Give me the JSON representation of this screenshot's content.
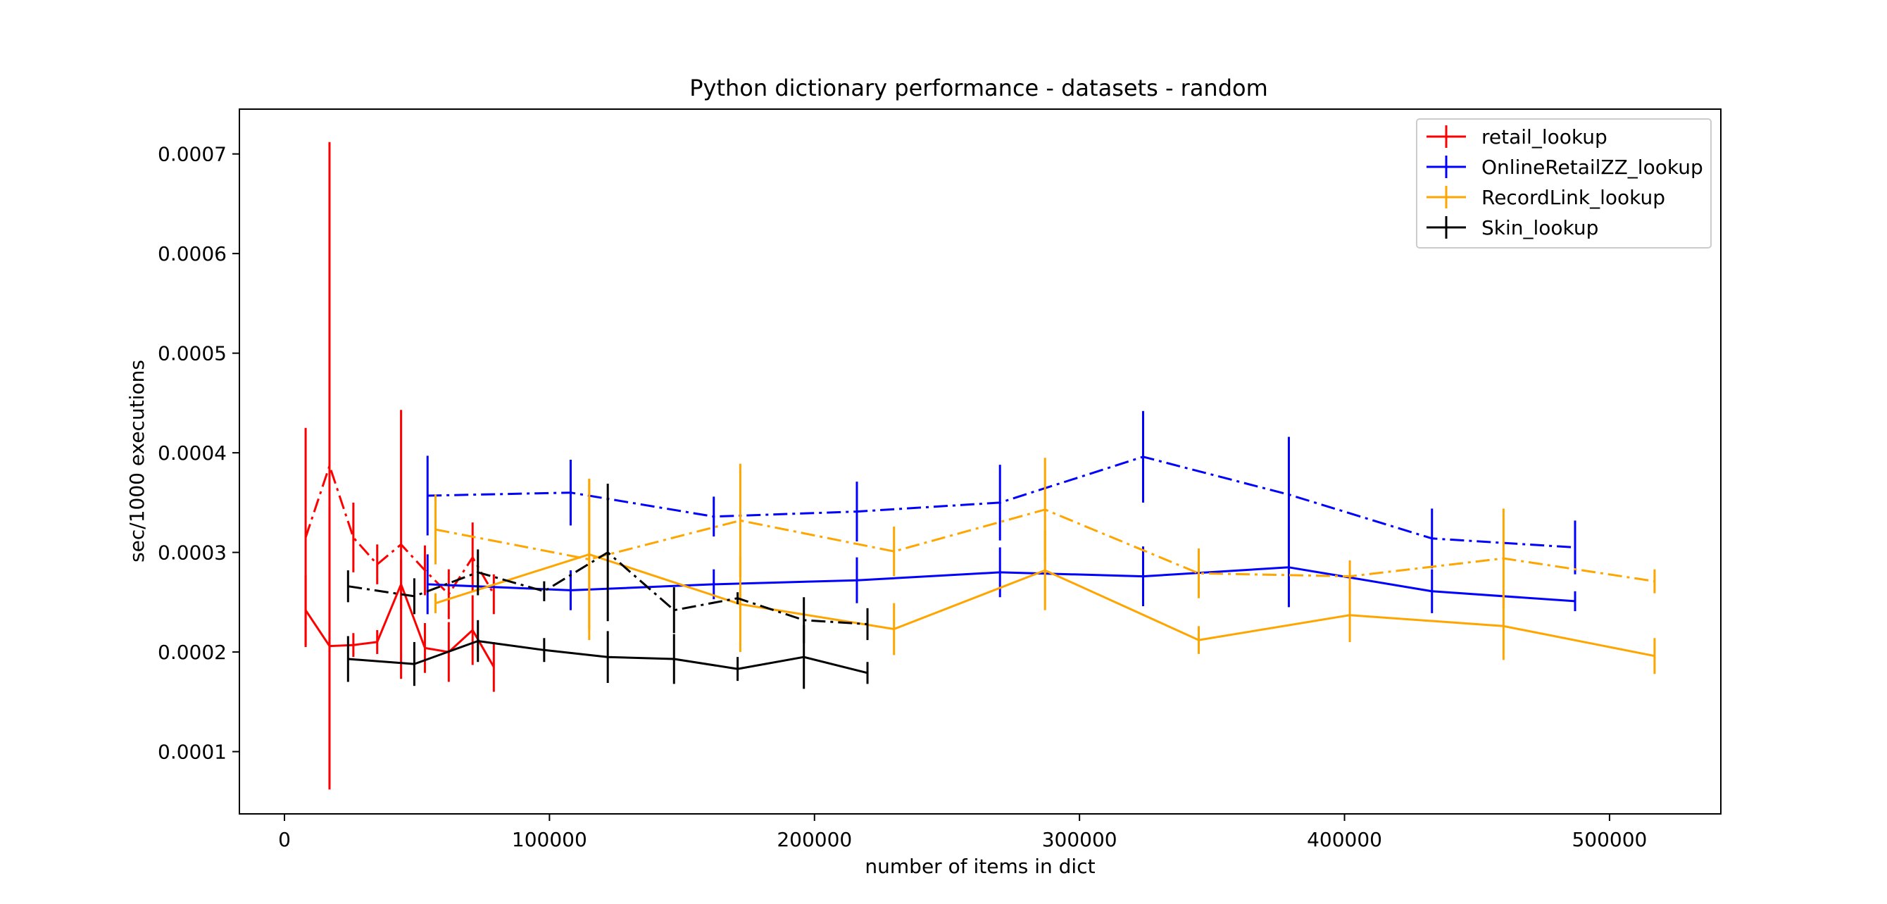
{
  "chart_data": {
    "type": "line",
    "title": "Python dictionary performance - datasets - random",
    "xlabel": "number of items in dict",
    "ylabel": "sec/1000 executions",
    "xlim": [
      -17000,
      542000
    ],
    "ylim": [
      3.75e-05,
      0.000745
    ],
    "xticks": [
      0,
      100000,
      200000,
      300000,
      400000,
      500000
    ],
    "xtick_labels": [
      "0",
      "100000",
      "200000",
      "300000",
      "400000",
      "500000"
    ],
    "yticks": [
      0.0001,
      0.0002,
      0.0003,
      0.0004,
      0.0005,
      0.0006,
      0.0007
    ],
    "ytick_labels": [
      "0.0001",
      "0.0002",
      "0.0003",
      "0.0004",
      "0.0005",
      "0.0006",
      "0.0007"
    ],
    "grid": false,
    "legend_position": "top-right",
    "legend": [
      "retail_lookup",
      "OnlineRetailZZ_lookup",
      "RecordLink_lookup",
      "Skin_lookup"
    ],
    "series": [
      {
        "name": "retail_lookup",
        "color": "#ff0000",
        "style": "solid",
        "x": [
          8000,
          17000,
          26000,
          35000,
          44000,
          53000,
          62000,
          71000,
          79000
        ],
        "y": [
          0.000242,
          0.000206,
          0.000207,
          0.00021,
          0.000268,
          0.000204,
          0.0002,
          0.000222,
          0.000185
        ],
        "err": [
          3.5e-05,
          0.00014,
          1.2e-05,
          1.2e-05,
          2.5e-05,
          2.5e-05,
          3e-05,
          3.5e-05,
          2.5e-05
        ]
      },
      {
        "name": "retail_lookup",
        "color": "#ff0000",
        "style": "dashdot",
        "x": [
          8000,
          17000,
          26000,
          35000,
          44000,
          53000,
          62000,
          71000,
          79000
        ],
        "y": [
          0.000315,
          0.000387,
          0.000315,
          0.000288,
          0.000308,
          0.000282,
          0.000258,
          0.000295,
          0.000258
        ],
        "err": [
          0.00011,
          0.000325,
          3.5e-05,
          2e-05,
          0.000135,
          2.5e-05,
          2.5e-05,
          3.5e-05,
          2e-05
        ]
      },
      {
        "name": "OnlineRetailZZ_lookup",
        "color": "#0000ff",
        "style": "solid",
        "x": [
          54000,
          108000,
          162000,
          216000,
          270000,
          324000,
          379000,
          433000,
          487000
        ],
        "y": [
          0.000268,
          0.000262,
          0.000268,
          0.000272,
          0.00028,
          0.000276,
          0.000285,
          0.000261,
          0.000251
        ],
        "err": [
          3e-05,
          2e-05,
          1.5e-05,
          2.3e-05,
          2.5e-05,
          3e-05,
          4e-05,
          2.2e-05,
          1e-05
        ]
      },
      {
        "name": "OnlineRetailZZ_lookup",
        "color": "#0000ff",
        "style": "dashdot",
        "x": [
          54000,
          108000,
          162000,
          216000,
          270000,
          324000,
          379000,
          433000,
          487000
        ],
        "y": [
          0.000357,
          0.00036,
          0.000336,
          0.000341,
          0.00035,
          0.000396,
          0.000358,
          0.000314,
          0.000305
        ],
        "err": [
          4e-05,
          3.3e-05,
          2e-05,
          3e-05,
          3.8e-05,
          4.6e-05,
          5.8e-05,
          3e-05,
          2.7e-05
        ]
      },
      {
        "name": "RecordLink_lookup",
        "color": "#ffa500",
        "style": "solid",
        "x": [
          57000,
          115000,
          172000,
          230000,
          287000,
          345000,
          402000,
          460000,
          517000
        ],
        "y": [
          0.000249,
          0.000298,
          0.000248,
          0.000223,
          0.000282,
          0.000212,
          0.000237,
          0.000226,
          0.000196
        ],
        "err": [
          1e-05,
          7.5e-05,
          4.8e-05,
          2.6e-05,
          4e-05,
          1.4e-05,
          2.7e-05,
          3.4e-05,
          1.8e-05
        ]
      },
      {
        "name": "RecordLink_lookup",
        "color": "#ffa500",
        "style": "dashdot",
        "x": [
          57000,
          115000,
          172000,
          230000,
          287000,
          345000,
          402000,
          460000,
          517000
        ],
        "y": [
          0.000323,
          0.000293,
          0.000332,
          0.000301,
          0.000343,
          0.000279,
          0.000276,
          0.000294,
          0.000271
        ],
        "err": [
          3.5e-05,
          8.1e-05,
          5.7e-05,
          2.5e-05,
          5.2e-05,
          2.5e-05,
          1.6e-05,
          5e-05,
          1.2e-05
        ]
      },
      {
        "name": "Skin_lookup",
        "color": "#000000",
        "style": "solid",
        "x": [
          24000,
          49000,
          73000,
          98000,
          122000,
          147000,
          171000,
          196000,
          220000
        ],
        "y": [
          0.000193,
          0.000188,
          0.000211,
          0.000202,
          0.000195,
          0.000193,
          0.000183,
          0.000195,
          0.000179
        ],
        "err": [
          2.3e-05,
          2.2e-05,
          2.1e-05,
          1.2e-05,
          2.6e-05,
          2.5e-05,
          1.2e-05,
          3.2e-05,
          1.1e-05
        ]
      },
      {
        "name": "Skin_lookup",
        "color": "#000000",
        "style": "dashdot",
        "x": [
          24000,
          49000,
          73000,
          98000,
          122000,
          147000,
          171000,
          196000,
          220000
        ],
        "y": [
          0.000266,
          0.000256,
          0.00028,
          0.000261,
          0.0003,
          0.000242,
          0.000254,
          0.000232,
          0.000228
        ],
        "err": [
          1.6e-05,
          1.8e-05,
          2.3e-05,
          1e-05,
          6.9e-05,
          2.3e-05,
          6e-06,
          2.3e-05,
          1.6e-05
        ]
      }
    ]
  }
}
